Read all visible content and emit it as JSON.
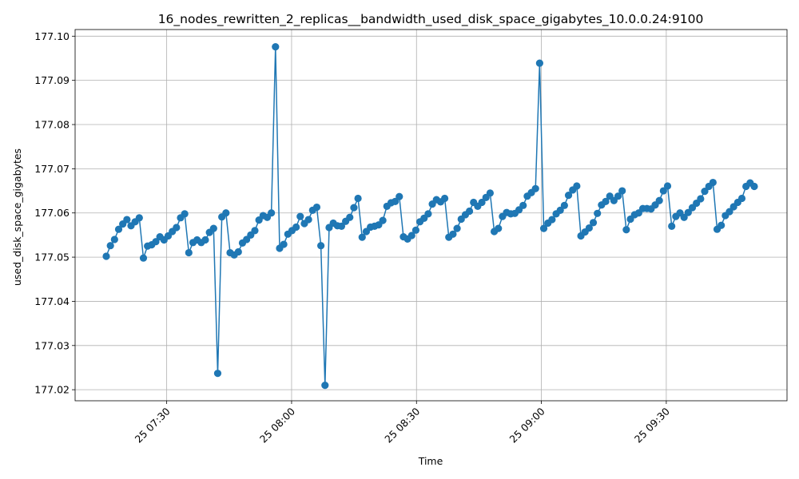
{
  "chart_data": {
    "type": "line",
    "title": "16_nodes_rewritten_2_replicas__bandwidth_used_disk_space_gigabytes_10.0.0.24:9100",
    "xlabel": "Time",
    "ylabel": "used_disk_space_gigabytes",
    "ylim": [
      177.0175,
      177.1015
    ],
    "xlim": [
      "2025-xx-25 07:08",
      "2025-xx-25 09:59"
    ],
    "grid": true,
    "line_color": "#1f77b4",
    "marker": "circle",
    "x_tick_labels": [
      "25 07:30",
      "25 08:00",
      "25 08:30",
      "25 09:00",
      "25 09:30"
    ],
    "x_tick_minutes": [
      450,
      480,
      510,
      540,
      570
    ],
    "y_ticks": [
      177.02,
      177.03,
      177.04,
      177.05,
      177.06,
      177.07,
      177.08,
      177.09,
      177.1
    ],
    "y_tick_labels": [
      "177.02",
      "177.03",
      "177.04",
      "177.05",
      "177.06",
      "177.07",
      "177.08",
      "177.09",
      "177.10"
    ],
    "series": [
      {
        "values": [
          177.0502,
          177.0526,
          177.054,
          177.0563,
          177.0575,
          177.0585,
          177.0571,
          177.058,
          177.0589,
          177.0498,
          177.0525,
          177.0528,
          177.0535,
          177.0546,
          177.0539,
          177.0548,
          177.0558,
          177.0567,
          177.0589,
          177.0598,
          177.051,
          177.0533,
          177.0539,
          177.0533,
          177.0539,
          177.0556,
          177.0565,
          177.0237,
          177.0591,
          177.06,
          177.051,
          177.0505,
          177.0512,
          177.0532,
          177.054,
          177.055,
          177.056,
          177.0584,
          177.0594,
          177.059,
          177.06,
          177.0976,
          177.052,
          177.0529,
          177.0552,
          177.056,
          177.0568,
          177.0592,
          177.0576,
          177.0585,
          177.0606,
          177.0613,
          177.0526,
          177.021,
          177.0567,
          177.0577,
          177.0571,
          177.057,
          177.0581,
          177.059,
          177.0612,
          177.0633,
          177.0545,
          177.0558,
          177.0568,
          177.057,
          177.0573,
          177.0583,
          177.0615,
          177.0623,
          177.0626,
          177.0637,
          177.0546,
          177.0541,
          177.0549,
          177.0561,
          177.058,
          177.0588,
          177.0598,
          177.062,
          177.063,
          177.0625,
          177.0633,
          177.0545,
          177.0552,
          177.0565,
          177.0586,
          177.0596,
          177.0604,
          177.0624,
          177.0615,
          177.0624,
          177.0635,
          177.0645,
          177.0558,
          177.0565,
          177.0592,
          177.0601,
          177.0598,
          177.0599,
          177.0607,
          177.0617,
          177.0638,
          177.0646,
          177.0655,
          177.0939,
          177.0565,
          177.0577,
          177.0585,
          177.0598,
          177.0606,
          177.0617,
          177.064,
          177.0652,
          177.0661,
          177.0548,
          177.0557,
          177.0566,
          177.0578,
          177.0599,
          177.0618,
          177.0626,
          177.0638,
          177.0628,
          177.0638,
          177.065,
          177.0562,
          177.0586,
          177.0596,
          177.06,
          177.061,
          177.061,
          177.0609,
          177.0618,
          177.0628,
          177.065,
          177.0661,
          177.057,
          177.0592,
          177.06,
          177.059,
          177.0601,
          177.0612,
          177.0622,
          177.0632,
          177.0649,
          177.066,
          177.0669,
          177.0563,
          177.0572,
          177.0594,
          177.0603,
          177.0614,
          177.0624,
          177.0633,
          177.066,
          177.0668,
          177.066
        ]
      }
    ]
  }
}
